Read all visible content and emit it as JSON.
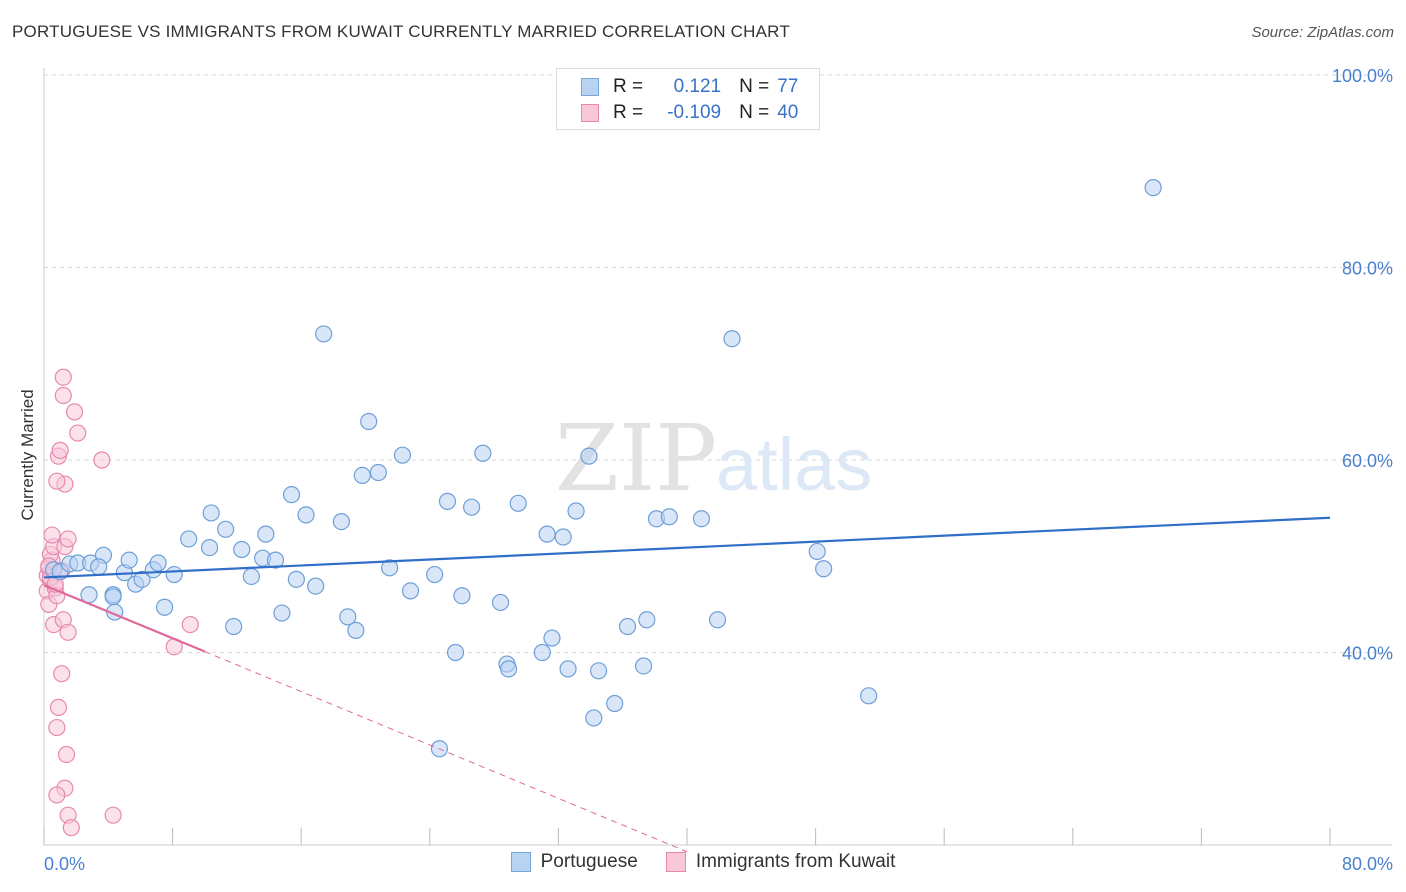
{
  "header": {
    "title": "PORTUGUESE VS IMMIGRANTS FROM KUWAIT CURRENTLY MARRIED CORRELATION CHART",
    "source": "Source: ZipAtlas.com"
  },
  "watermark": {
    "zip": "ZIP",
    "atlas": "atlas"
  },
  "legend_top": {
    "rows": [
      {
        "r_label": "R =",
        "r_value": "0.121",
        "n_label": "N =",
        "n_value": "77",
        "color": "#b8d2f2",
        "border": "#7aa6dc"
      },
      {
        "r_label": "R =",
        "r_value": "-0.109",
        "n_label": "N =",
        "n_value": "40",
        "color": "#f8c8d8",
        "border": "#e88ab0"
      }
    ]
  },
  "legend_bottom": [
    {
      "label": "Portuguese",
      "color": "#b8d2f2",
      "border": "#7aa6dc"
    },
    {
      "label": "Immigrants from Kuwait",
      "color": "#f8c8d8",
      "border": "#e88ab0"
    }
  ],
  "colors": {
    "blue_fill": "#b8d2f2",
    "blue_stroke": "#6f9fd8",
    "blue_line": "#2f6fc8",
    "pink_fill": "#f8c8d8",
    "pink_stroke": "#e88ab0",
    "pink_line": "#e0689a",
    "tick_text": "#4a80d0"
  },
  "chart_data": {
    "type": "scatter",
    "title": "PORTUGUESE VS IMMIGRANTS FROM KUWAIT CURRENTLY MARRIED CORRELATION CHART",
    "xlabel": "",
    "ylabel": "Currently Married",
    "xlim": [
      0,
      80
    ],
    "ylim": [
      20,
      100
    ],
    "x_tick_labels": [
      {
        "value": 0,
        "label": "0.0%"
      },
      {
        "value": 80,
        "label": "80.0%"
      }
    ],
    "y_tick_labels": [
      {
        "value": 40,
        "label": "40.0%"
      },
      {
        "value": 60,
        "label": "60.0%"
      },
      {
        "value": 80,
        "label": "80.0%"
      },
      {
        "value": 100,
        "label": "100.0%"
      }
    ],
    "x_minor_ticks": [
      0,
      8,
      16,
      24,
      32,
      40,
      48,
      56,
      64,
      72,
      80
    ],
    "y_gridlines": [
      40,
      60,
      80,
      100
    ],
    "series": [
      {
        "name": "Portuguese",
        "r": 0.121,
        "n": 77,
        "trend": {
          "x0": 0,
          "y0": 47.8,
          "x1": 80,
          "y1": 54.0
        },
        "points": [
          [
            0.6,
            48.6
          ],
          [
            1.0,
            48.4
          ],
          [
            1.6,
            49.2
          ],
          [
            2.1,
            49.3
          ],
          [
            2.9,
            49.3
          ],
          [
            3.7,
            50.1
          ],
          [
            2.8,
            46.0
          ],
          [
            3.4,
            48.9
          ],
          [
            4.3,
            46.0
          ],
          [
            4.4,
            44.2
          ],
          [
            5.0,
            48.3
          ],
          [
            5.3,
            49.6
          ],
          [
            5.7,
            47.1
          ],
          [
            6.1,
            47.6
          ],
          [
            6.8,
            48.6
          ],
          [
            7.1,
            49.3
          ],
          [
            7.5,
            44.7
          ],
          [
            8.1,
            48.1
          ],
          [
            9.0,
            51.8
          ],
          [
            10.3,
            50.9
          ],
          [
            10.4,
            54.5
          ],
          [
            11.3,
            52.8
          ],
          [
            11.8,
            42.7
          ],
          [
            12.3,
            50.7
          ],
          [
            12.9,
            47.9
          ],
          [
            13.6,
            49.8
          ],
          [
            13.8,
            52.3
          ],
          [
            14.4,
            49.6
          ],
          [
            14.8,
            44.1
          ],
          [
            15.4,
            56.4
          ],
          [
            15.7,
            47.6
          ],
          [
            16.3,
            54.3
          ],
          [
            16.9,
            46.9
          ],
          [
            17.4,
            73.1
          ],
          [
            18.5,
            53.6
          ],
          [
            18.9,
            43.7
          ],
          [
            19.4,
            42.3
          ],
          [
            19.8,
            58.4
          ],
          [
            20.2,
            64.0
          ],
          [
            20.8,
            58.7
          ],
          [
            21.5,
            48.8
          ],
          [
            22.3,
            60.5
          ],
          [
            22.8,
            46.4
          ],
          [
            24.3,
            48.1
          ],
          [
            25.1,
            55.7
          ],
          [
            25.6,
            40.0
          ],
          [
            26.0,
            45.9
          ],
          [
            26.6,
            55.1
          ],
          [
            27.3,
            60.7
          ],
          [
            28.8,
            38.8
          ],
          [
            28.9,
            38.3
          ],
          [
            28.4,
            45.2
          ],
          [
            29.5,
            55.5
          ],
          [
            31.0,
            40.0
          ],
          [
            31.3,
            52.3
          ],
          [
            31.6,
            41.5
          ],
          [
            32.3,
            52.0
          ],
          [
            32.6,
            38.3
          ],
          [
            33.1,
            54.7
          ],
          [
            33.9,
            60.4
          ],
          [
            34.2,
            33.2
          ],
          [
            34.5,
            38.1
          ],
          [
            35.5,
            34.7
          ],
          [
            36.3,
            42.7
          ],
          [
            37.3,
            38.6
          ],
          [
            37.5,
            43.4
          ],
          [
            38.1,
            53.9
          ],
          [
            38.9,
            54.1
          ],
          [
            40.9,
            53.9
          ],
          [
            41.9,
            43.4
          ],
          [
            42.8,
            72.6
          ],
          [
            48.1,
            50.5
          ],
          [
            48.5,
            48.7
          ],
          [
            51.3,
            35.5
          ],
          [
            69.0,
            88.3
          ],
          [
            24.6,
            30.0
          ],
          [
            4.3,
            45.8
          ]
        ]
      },
      {
        "name": "Immigrants from Kuwait",
        "r": -0.109,
        "n": 40,
        "trend": {
          "x0": 0,
          "y0": 47.0,
          "x1": 10.0,
          "y1": 40.1
        },
        "trend_dashed": {
          "x0": 10.0,
          "y0": 40.1,
          "x1": 40.0,
          "y1": 19.3
        },
        "points": [
          [
            0.2,
            48.0
          ],
          [
            0.4,
            47.5
          ],
          [
            0.3,
            48.8
          ],
          [
            0.5,
            49.6
          ],
          [
            0.4,
            50.2
          ],
          [
            0.6,
            51.0
          ],
          [
            0.2,
            46.4
          ],
          [
            0.3,
            45.0
          ],
          [
            0.7,
            46.7
          ],
          [
            0.4,
            47.8
          ],
          [
            0.8,
            45.9
          ],
          [
            1.1,
            48.5
          ],
          [
            1.3,
            51.0
          ],
          [
            1.5,
            51.8
          ],
          [
            0.6,
            42.9
          ],
          [
            1.2,
            43.4
          ],
          [
            1.5,
            42.1
          ],
          [
            0.9,
            60.4
          ],
          [
            1.0,
            61.0
          ],
          [
            1.3,
            57.5
          ],
          [
            0.8,
            57.8
          ],
          [
            1.2,
            66.7
          ],
          [
            1.2,
            68.6
          ],
          [
            1.9,
            65.0
          ],
          [
            2.1,
            62.8
          ],
          [
            3.6,
            60.0
          ],
          [
            1.1,
            37.8
          ],
          [
            0.9,
            34.3
          ],
          [
            0.8,
            32.2
          ],
          [
            1.4,
            29.4
          ],
          [
            1.3,
            25.9
          ],
          [
            0.8,
            25.2
          ],
          [
            1.5,
            23.1
          ],
          [
            1.7,
            21.8
          ],
          [
            4.3,
            23.1
          ],
          [
            9.1,
            42.9
          ],
          [
            8.1,
            40.6
          ],
          [
            0.3,
            49.0
          ],
          [
            0.5,
            52.2
          ],
          [
            0.7,
            47.1
          ]
        ]
      }
    ]
  }
}
